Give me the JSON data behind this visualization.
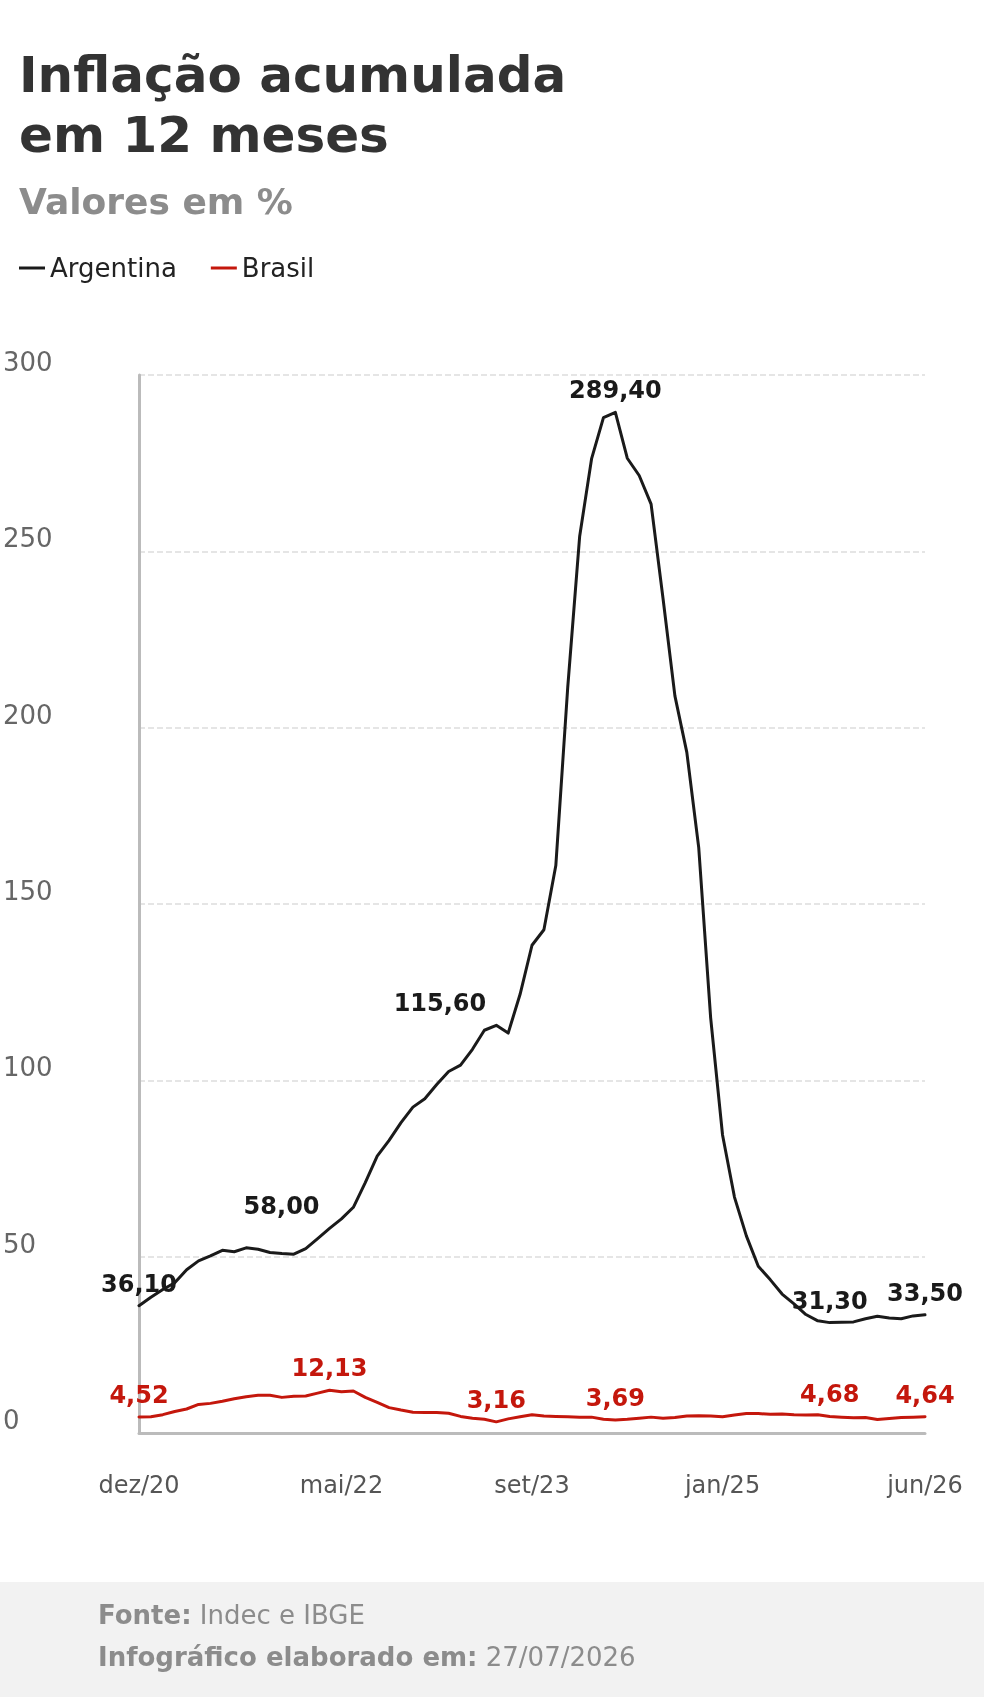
{
  "chart_data": {
    "type": "line",
    "title": "Inflação acumulada em 12 meses",
    "subtitle": "Valores em %",
    "categories": [
      "dez/20",
      null,
      null,
      null,
      null,
      null,
      null,
      null,
      null,
      null,
      null,
      null,
      null,
      null,
      null,
      null,
      null,
      "mai/22",
      null,
      null,
      null,
      null,
      null,
      null,
      null,
      null,
      null,
      null,
      null,
      null,
      null,
      null,
      null,
      "set/23",
      null,
      null,
      null,
      null,
      null,
      null,
      null,
      null,
      null,
      null,
      null,
      null,
      null,
      null,
      null,
      "jan/25",
      null,
      null,
      null,
      null,
      null,
      null,
      null,
      null,
      null,
      null,
      null,
      null,
      null,
      null,
      null,
      null,
      "jun/26"
    ],
    "series": [
      {
        "name": "Argentina",
        "color": "#1a1a1a",
        "values": [
          36.1,
          38.5,
          40.7,
          42.6,
          46.3,
          48.8,
          50.2,
          51.8,
          51.4,
          52.5,
          52.1,
          51.2,
          50.9,
          50.7,
          52.3,
          55.1,
          58.0,
          60.7,
          64.0,
          71.0,
          78.5,
          83.0,
          88.0,
          92.4,
          94.8,
          98.8,
          102.5,
          104.3,
          108.8,
          114.2,
          115.6,
          113.4,
          124.4,
          138.3,
          142.7,
          160.9,
          211.4,
          254.2,
          276.2,
          287.9,
          289.4,
          276.4,
          271.5,
          263.4,
          236.7,
          209.0,
          193.0,
          166.0,
          117.8,
          84.5,
          66.9,
          55.9,
          47.3,
          43.5,
          39.4,
          36.6,
          33.6,
          31.8,
          31.3,
          31.4,
          31.5,
          32.4,
          33.1,
          32.6,
          32.4,
          33.2,
          33.5
        ],
        "value_labels": [
          "36,10",
          null,
          null,
          null,
          null,
          null,
          null,
          null,
          null,
          null,
          null,
          null,
          null,
          null,
          null,
          null,
          "58,00",
          null,
          null,
          null,
          null,
          null,
          null,
          null,
          null,
          null,
          null,
          null,
          null,
          null,
          "115,60",
          null,
          null,
          null,
          null,
          null,
          null,
          null,
          null,
          null,
          "289,40",
          null,
          null,
          null,
          null,
          null,
          null,
          null,
          null,
          null,
          null,
          null,
          null,
          null,
          null,
          null,
          null,
          null,
          "31,30",
          null,
          null,
          null,
          null,
          null,
          null,
          null,
          "33,50"
        ]
      },
      {
        "name": "Brasil",
        "color": "#c4170c",
        "values": [
          4.52,
          4.6,
          5.2,
          6.1,
          6.8,
          8.1,
          8.4,
          9.0,
          9.7,
          10.3,
          10.7,
          10.7,
          10.1,
          10.4,
          10.5,
          11.3,
          12.13,
          11.7,
          11.9,
          10.1,
          8.7,
          7.2,
          6.5,
          5.9,
          5.8,
          5.8,
          5.6,
          4.7,
          4.2,
          3.9,
          3.16,
          4.0,
          4.6,
          5.2,
          4.8,
          4.7,
          4.6,
          4.5,
          4.5,
          3.9,
          3.69,
          3.9,
          4.2,
          4.5,
          4.2,
          4.4,
          4.8,
          4.9,
          4.8,
          4.6,
          5.1,
          5.5,
          5.5,
          5.3,
          5.4,
          5.2,
          5.1,
          5.2,
          4.68,
          4.5,
          4.3,
          4.4,
          3.8,
          4.1,
          4.4,
          4.5,
          4.64
        ],
        "value_labels": [
          "4,52",
          null,
          null,
          null,
          null,
          null,
          null,
          null,
          null,
          null,
          null,
          null,
          null,
          null,
          null,
          null,
          "12,13",
          null,
          null,
          null,
          null,
          null,
          null,
          null,
          null,
          null,
          null,
          null,
          null,
          null,
          "3,16",
          null,
          null,
          null,
          null,
          null,
          null,
          null,
          null,
          null,
          "3,69",
          null,
          null,
          null,
          null,
          null,
          null,
          null,
          null,
          null,
          null,
          null,
          null,
          null,
          null,
          null,
          null,
          null,
          "4,68",
          null,
          null,
          null,
          null,
          null,
          null,
          null,
          "4,64"
        ]
      }
    ],
    "ylim": [
      0,
      300
    ],
    "yticks": [
      0,
      50,
      100,
      150,
      200,
      250,
      300
    ],
    "grid": "y",
    "legend": "top left",
    "marker": "none",
    "line_style": "solid",
    "annotations": [
      "Fonte: Indec e IBGE",
      "Infográfico elaborado em: 27/07/2026"
    ]
  }
}
